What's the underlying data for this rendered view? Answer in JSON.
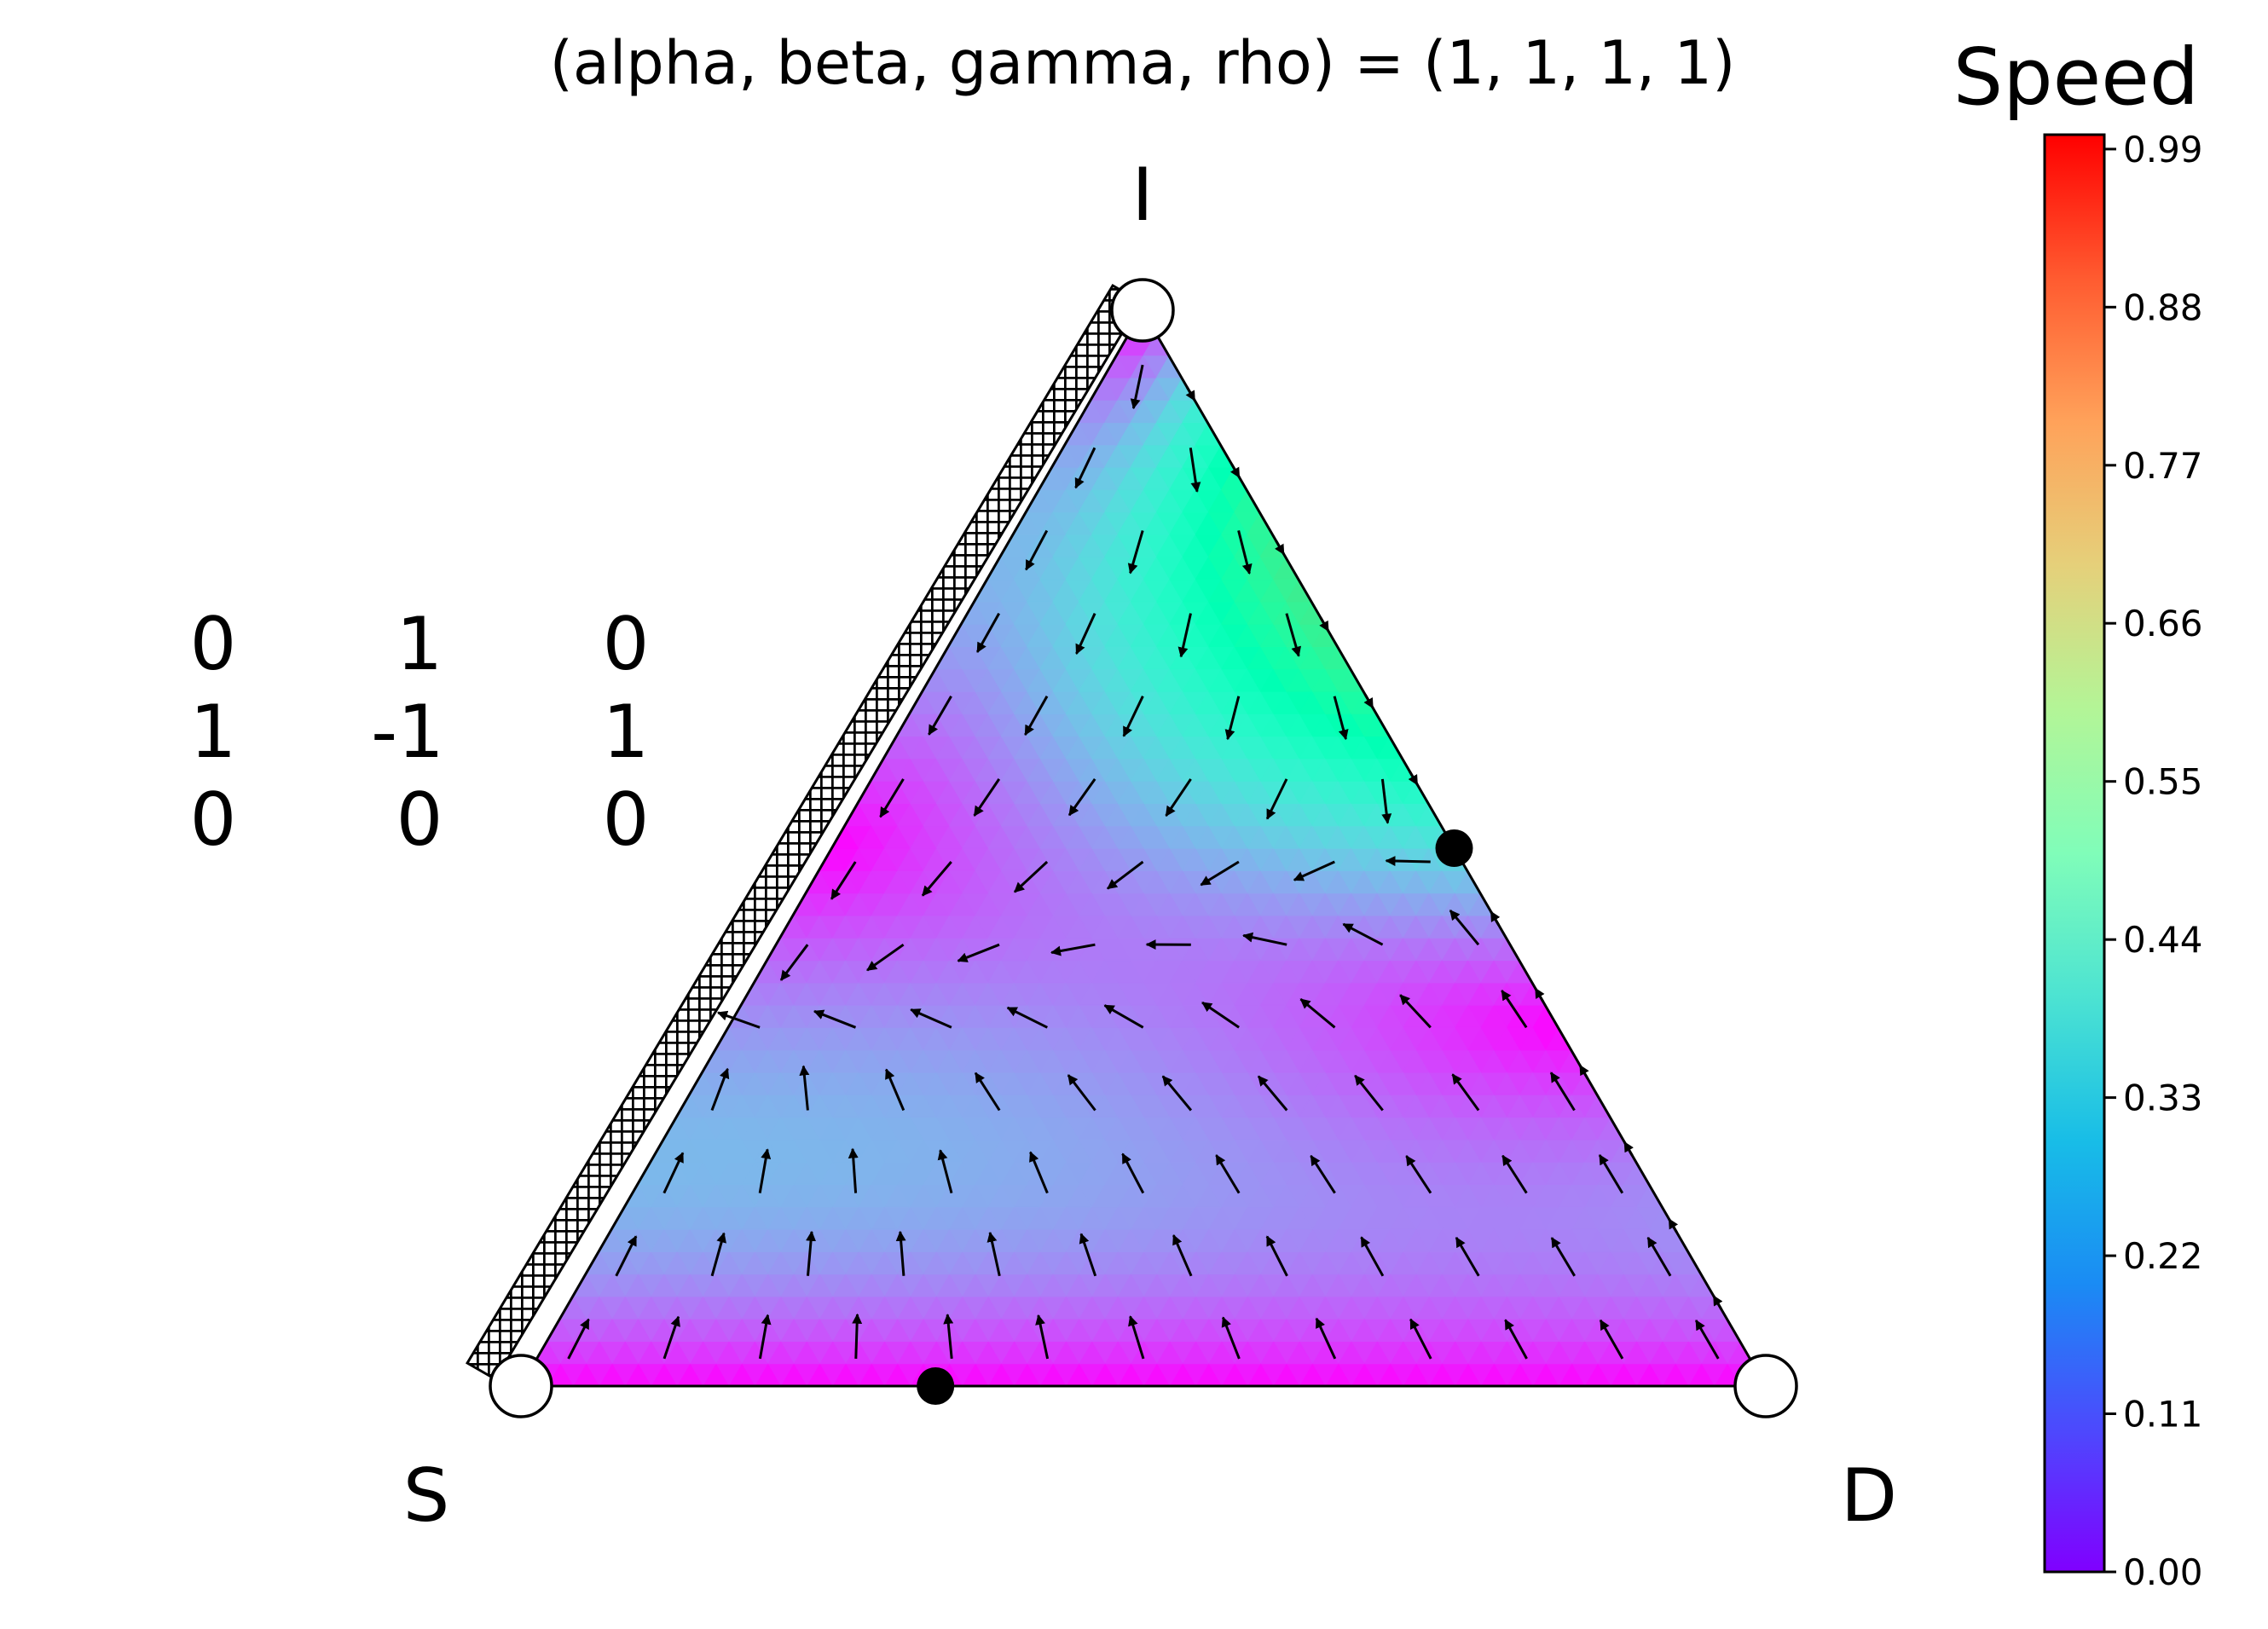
{
  "chart_data": {
    "type": "ternary-vector-field",
    "title": "(alpha, beta, gamma, rho) = (1, 1, 1, 1)",
    "vertices": {
      "top": "I",
      "bottom_left": "S",
      "bottom_right": "D"
    },
    "payoff_matrix": [
      [
        "0",
        "1",
        "0"
      ],
      [
        "1",
        "-1",
        "1"
      ],
      [
        "0",
        "0",
        "0"
      ]
    ],
    "colorbar": {
      "label": "Speed",
      "colormap": "rainbow",
      "range": [
        0,
        1
      ],
      "ticks": [
        "0.00",
        "0.11",
        "0.22",
        "0.33",
        "0.44",
        "0.55",
        "0.66",
        "0.77",
        "0.88",
        "0.99"
      ]
    },
    "unstable_points": [
      {
        "S": 1,
        "I": 0,
        "D": 0
      },
      {
        "S": 0,
        "I": 1,
        "D": 0
      },
      {
        "S": 0,
        "I": 0,
        "D": 1
      }
    ],
    "stable_points": [
      {
        "S": 0.667,
        "I": 0,
        "D": 0.333
      },
      {
        "S": 0,
        "I": 0.5,
        "D": 0.5
      }
    ],
    "hatched_edge": "S-I"
  }
}
